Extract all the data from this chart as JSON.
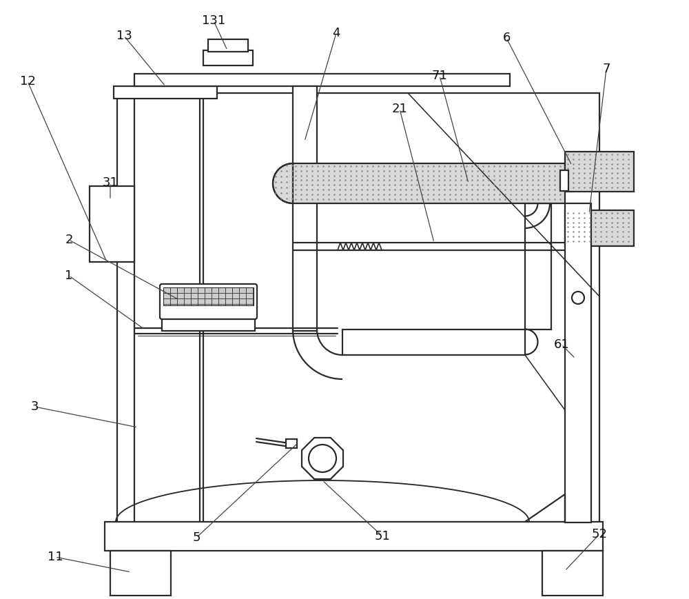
{
  "bg": "#ffffff",
  "lc": "#2a2a2a",
  "lw": 1.6,
  "stipple_color": "#aaaaaa",
  "stipple_bg": "#d8d8d8",
  "label_fs": 13,
  "label_color": "#111111",
  "leader_lw": 0.9,
  "leader_color": "#444444"
}
